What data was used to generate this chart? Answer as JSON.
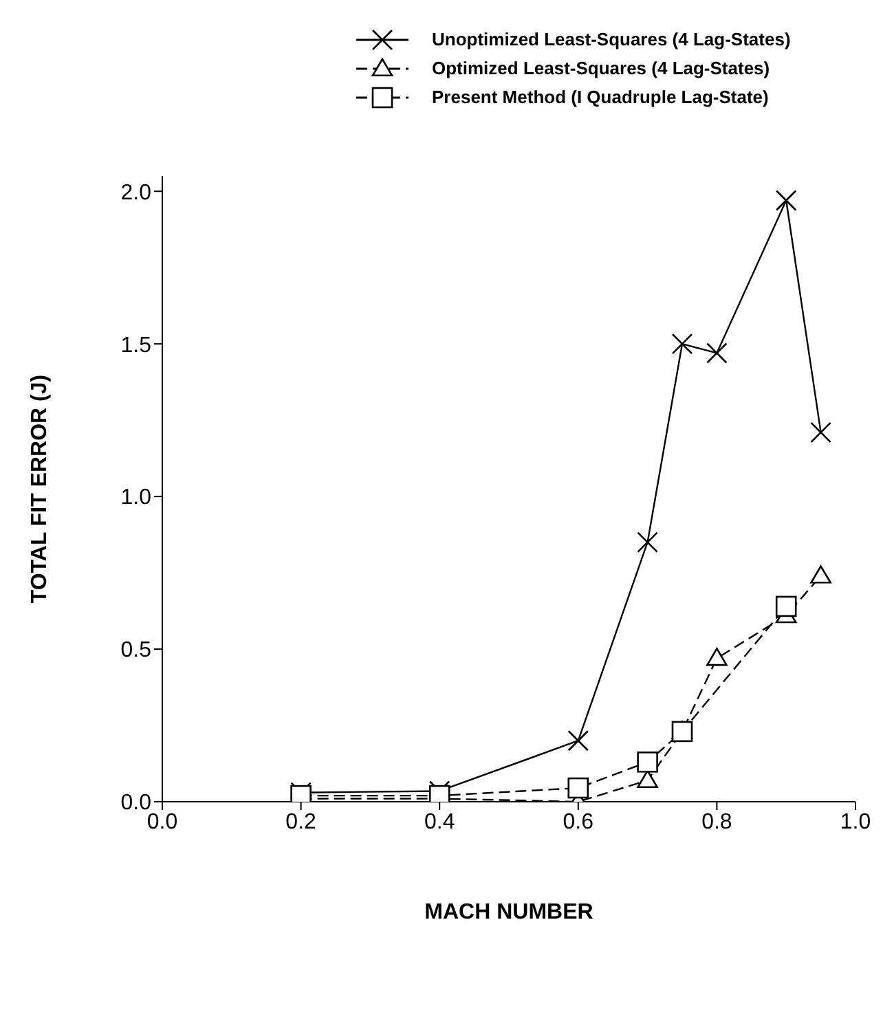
{
  "chart_data": {
    "type": "line",
    "xlabel": "MACH NUMBER",
    "ylabel": "TOTAL FIT ERROR (J)",
    "xlim": [
      0,
      1
    ],
    "xticks": [
      {
        "value": 0,
        "label": "0.0"
      },
      {
        "value": 0.2,
        "label": "0.2"
      },
      {
        "value": 0.4,
        "label": "0.4"
      },
      {
        "value": 0.6,
        "label": "0.6"
      },
      {
        "value": 0.8,
        "label": "0.8"
      },
      {
        "value": 1,
        "label": "1.0"
      }
    ],
    "ylim": [
      0,
      2.05
    ],
    "yticks": [
      {
        "value": 0,
        "label": "0.0"
      },
      {
        "value": 0.5,
        "label": "0.5"
      },
      {
        "value": 1,
        "label": "1.0"
      },
      {
        "value": 1.5,
        "label": "1.5"
      },
      {
        "value": 2,
        "label": "2.0"
      }
    ],
    "legend": "top",
    "grid": false,
    "series": [
      {
        "name": "Unoptimized Least-Squares (4 Lag-States)",
        "color": "#000000",
        "marker": "cross",
        "line_style": "solid",
        "x": [
          0.2,
          0.4,
          0.6,
          0.7,
          0.75,
          0.8,
          0.9,
          0.95
        ],
        "values": [
          0.03,
          0.035,
          0.2,
          0.85,
          1.5,
          1.47,
          1.97,
          1.21
        ]
      },
      {
        "name": "Optimized Least-Squares (4 Lag-States)",
        "color": "#000000",
        "marker": "triangle",
        "line_style": "dashed",
        "x": [
          0.2,
          0.4,
          0.6,
          0.7,
          0.75,
          0.8,
          0.9,
          0.95
        ],
        "values": [
          0.01,
          0.01,
          0,
          0.07,
          0.23,
          0.47,
          0.61,
          0.74
        ]
      },
      {
        "name": "Present Method (I Quadruple Lag-State)",
        "color": "#000000",
        "marker": "square",
        "line_style": "dashed",
        "x": [
          0.2,
          0.4,
          0.6,
          0.7,
          0.75,
          0.9
        ],
        "values": [
          0.02,
          0.02,
          0.045,
          0.13,
          0.23,
          0.64
        ]
      }
    ]
  }
}
